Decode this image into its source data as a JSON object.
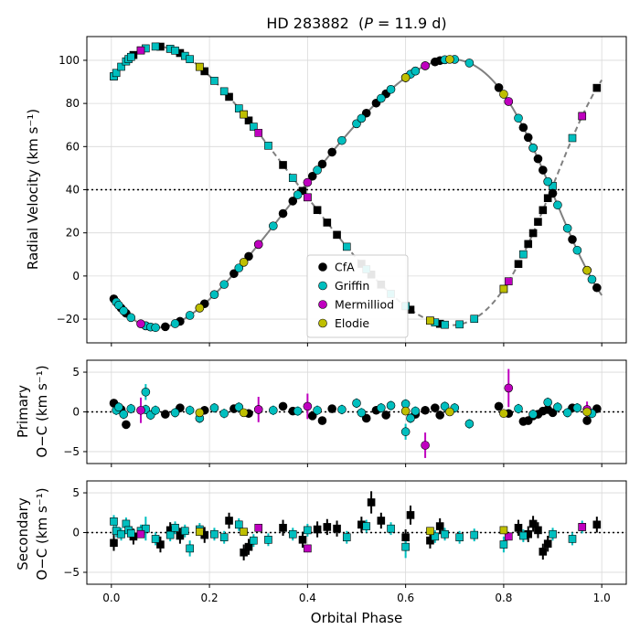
{
  "chart_data": [
    {
      "type": "scatter",
      "panel": "radial-velocity",
      "title": "HD 283882  (P = 11.9 d)",
      "title_parts": {
        "name": "HD 283882",
        "symbol": "P",
        "value": " = 11.9 d"
      },
      "ylabel": "Radial Velocity (km s⁻¹)",
      "xlim": [
        -0.05,
        1.05
      ],
      "ylim": [
        -31,
        111
      ],
      "yticks": [
        "−20",
        "0",
        "20",
        "40",
        "60",
        "80",
        "100"
      ],
      "ytick_values": [
        -20,
        0,
        20,
        40,
        60,
        80,
        100
      ],
      "grid": true,
      "systemic_velocity": 40,
      "model": {
        "gamma": 40,
        "K_primary": 62.2,
        "K_secondary": 64.6,
        "e": 0.16,
        "omega_deg": 100,
        "phase_periastron": 0.92
      },
      "legend_position": "lower-center",
      "legend": [
        {
          "label": "CfA",
          "color": "#000000"
        },
        {
          "label": "Griffin",
          "color": "#00bfbf"
        },
        {
          "label": "Mermilliod",
          "color": "#bf00bf"
        },
        {
          "label": "Elodie",
          "color": "#bfbf00"
        }
      ],
      "primary_marker": "circle",
      "secondary_marker": "square",
      "primary_phases": {
        "CfA": [
          0.005,
          0.02,
          0.03,
          0.11,
          0.14,
          0.19,
          0.25,
          0.28,
          0.35,
          0.37,
          0.41,
          0.43,
          0.45,
          0.52,
          0.54,
          0.56,
          0.62,
          0.64,
          0.66,
          0.67,
          0.79,
          0.81,
          0.84,
          0.85,
          0.86,
          0.87,
          0.88,
          0.89,
          0.9,
          0.94,
          0.97,
          0.99
        ],
        "Griffin": [
          0.01,
          0.015,
          0.025,
          0.04,
          0.07,
          0.07,
          0.08,
          0.09,
          0.13,
          0.16,
          0.18,
          0.21,
          0.23,
          0.26,
          0.3,
          0.33,
          0.38,
          0.42,
          0.47,
          0.5,
          0.51,
          0.55,
          0.57,
          0.6,
          0.6,
          0.61,
          0.62,
          0.68,
          0.7,
          0.73,
          0.83,
          0.86,
          0.89,
          0.91,
          0.93,
          0.95,
          0.98
        ],
        "Mermilliod": [
          0.06,
          0.3,
          0.4,
          0.64,
          0.81,
          0.97
        ],
        "Elodie": [
          0.18,
          0.27,
          0.6,
          0.69,
          0.8,
          0.97
        ]
      },
      "secondary_phases": {
        "CfA": [
          0.005,
          0.045,
          0.1,
          0.12,
          0.14,
          0.19,
          0.24,
          0.27,
          0.28,
          0.35,
          0.39,
          0.42,
          0.44,
          0.46,
          0.51,
          0.53,
          0.55,
          0.6,
          0.61,
          0.65,
          0.67,
          0.83,
          0.85,
          0.86,
          0.87,
          0.88,
          0.89,
          0.99
        ],
        "Griffin": [
          0.005,
          0.01,
          0.02,
          0.03,
          0.035,
          0.04,
          0.06,
          0.07,
          0.09,
          0.12,
          0.13,
          0.15,
          0.16,
          0.18,
          0.21,
          0.23,
          0.26,
          0.29,
          0.32,
          0.37,
          0.4,
          0.48,
          0.52,
          0.57,
          0.6,
          0.66,
          0.68,
          0.71,
          0.74,
          0.8,
          0.84,
          0.9,
          0.94,
          0.96
        ],
        "Mermilliod": [
          0.06,
          0.3,
          0.4,
          0.81,
          0.96
        ],
        "Elodie": [
          0.18,
          0.27,
          0.65,
          0.8
        ]
      }
    },
    {
      "type": "scatter",
      "panel": "primary-residuals",
      "ylabel_lines": [
        "Primary",
        "O−C (km s⁻¹)"
      ],
      "ylim": [
        -6.5,
        6.5
      ],
      "yticks": [
        "−5",
        "0",
        "5"
      ],
      "ytick_values": [
        -5,
        0,
        5
      ],
      "zero_line": true,
      "series": [
        {
          "name": "CfA",
          "color": "#000000",
          "x": [
            0.005,
            0.02,
            0.03,
            0.11,
            0.14,
            0.19,
            0.25,
            0.28,
            0.35,
            0.37,
            0.41,
            0.43,
            0.45,
            0.52,
            0.54,
            0.56,
            0.62,
            0.64,
            0.66,
            0.67,
            0.79,
            0.81,
            0.84,
            0.85,
            0.86,
            0.87,
            0.88,
            0.89,
            0.9,
            0.94,
            0.97,
            0.99
          ],
          "y": [
            1.1,
            0.3,
            -1.6,
            -0.3,
            0.5,
            0.2,
            0.4,
            -0.2,
            0.7,
            0.1,
            -0.5,
            -1.1,
            0.4,
            -0.8,
            0.2,
            -0.4,
            -0.3,
            0.2,
            0.5,
            -0.4,
            0.7,
            -0.2,
            -1.2,
            -1.1,
            -0.5,
            -0.3,
            0.1,
            0.3,
            -0.1,
            0.5,
            -1.1,
            0.4
          ],
          "err": [
            0.5,
            0.5,
            0.5,
            0.5,
            0.5,
            0.5,
            0.5,
            0.5,
            0.5,
            0.5,
            0.5,
            0.5,
            0.5,
            0.5,
            0.5,
            0.5,
            0.5,
            0.5,
            0.5,
            0.5,
            0.5,
            0.5,
            0.5,
            0.5,
            0.5,
            0.5,
            0.5,
            0.5,
            0.5,
            0.5,
            0.5,
            0.5
          ]
        },
        {
          "name": "Griffin",
          "color": "#00bfbf",
          "x": [
            0.01,
            0.015,
            0.025,
            0.04,
            0.07,
            0.07,
            0.08,
            0.09,
            0.13,
            0.16,
            0.18,
            0.21,
            0.23,
            0.26,
            0.3,
            0.33,
            0.38,
            0.42,
            0.47,
            0.5,
            0.51,
            0.55,
            0.57,
            0.6,
            0.6,
            0.61,
            0.62,
            0.68,
            0.7,
            0.73,
            0.83,
            0.86,
            0.89,
            0.91,
            0.93,
            0.95,
            0.98
          ],
          "y": [
            0.2,
            0.6,
            -0.3,
            0.4,
            0.3,
            2.5,
            -0.4,
            0.2,
            -0.1,
            0.2,
            -0.8,
            0.5,
            -0.2,
            0.6,
            0.3,
            0.2,
            0.1,
            0.2,
            0.3,
            1.1,
            -0.1,
            0.5,
            0.8,
            1.0,
            -2.5,
            -0.8,
            0.1,
            0.7,
            0.5,
            -1.5,
            0.4,
            -0.3,
            1.2,
            0.6,
            -0.1,
            0.5,
            -0.2
          ],
          "err": [
            0.6,
            0.6,
            0.6,
            0.6,
            0.6,
            1.0,
            0.6,
            0.6,
            0.6,
            0.6,
            0.6,
            0.6,
            0.6,
            0.6,
            0.6,
            0.6,
            0.6,
            0.6,
            0.6,
            0.6,
            0.6,
            0.6,
            0.6,
            0.6,
            1.0,
            0.6,
            0.6,
            0.6,
            0.6,
            0.6,
            0.6,
            0.6,
            0.6,
            0.6,
            0.6,
            0.6,
            0.6
          ]
        },
        {
          "name": "Mermilliod",
          "color": "#bf00bf",
          "x": [
            0.06,
            0.3,
            0.4,
            0.64,
            0.81,
            0.97
          ],
          "y": [
            0.2,
            0.3,
            0.7,
            -4.2,
            3.0,
            0.3
          ],
          "err": [
            1.6,
            1.6,
            1.6,
            1.6,
            2.4,
            1.0
          ]
        },
        {
          "name": "Elodie",
          "color": "#bfbf00",
          "x": [
            0.18,
            0.27,
            0.6,
            0.69,
            0.8,
            0.97
          ],
          "y": [
            -0.1,
            -0.1,
            0.1,
            0.0,
            -0.2,
            0.0
          ],
          "err": [
            0.3,
            0.3,
            0.3,
            0.3,
            0.3,
            0.3
          ]
        }
      ]
    },
    {
      "type": "scatter",
      "panel": "secondary-residuals",
      "ylabel_lines": [
        "Secondary",
        "O−C (km s⁻¹)"
      ],
      "xlabel": "Orbital Phase",
      "xlim": [
        -0.05,
        1.05
      ],
      "xticks": [
        "0.0",
        "0.2",
        "0.4",
        "0.6",
        "0.8",
        "1.0"
      ],
      "xtick_values": [
        0,
        0.2,
        0.4,
        0.6,
        0.8,
        1.0
      ],
      "ylim": [
        -6.5,
        6.5
      ],
      "yticks": [
        "−5",
        "0",
        "5"
      ],
      "ytick_values": [
        -5,
        0,
        5
      ],
      "zero_line": true,
      "series": [
        {
          "name": "CfA",
          "color": "#000000",
          "x": [
            0.005,
            0.045,
            0.1,
            0.12,
            0.14,
            0.19,
            0.24,
            0.27,
            0.28,
            0.35,
            0.39,
            0.42,
            0.44,
            0.46,
            0.51,
            0.53,
            0.55,
            0.6,
            0.61,
            0.65,
            0.67,
            0.83,
            0.85,
            0.86,
            0.87,
            0.88,
            0.89,
            0.99
          ],
          "y": [
            -1.3,
            -0.5,
            -1.5,
            0.3,
            -0.4,
            -0.3,
            1.5,
            -2.5,
            -1.8,
            0.6,
            -0.9,
            0.4,
            0.7,
            0.5,
            1.0,
            3.8,
            1.5,
            -0.6,
            2.2,
            -1.0,
            0.8,
            0.6,
            -0.2,
            1.1,
            0.3,
            -2.4,
            -1.4,
            1.0
          ],
          "err": [
            1.0,
            1.0,
            1.0,
            1.0,
            1.0,
            1.0,
            1.0,
            1.0,
            1.0,
            1.0,
            1.0,
            1.0,
            1.0,
            1.0,
            1.0,
            1.4,
            1.0,
            1.0,
            1.2,
            1.0,
            1.0,
            1.0,
            1.0,
            1.0,
            1.0,
            1.0,
            1.0,
            1.0
          ]
        },
        {
          "name": "Griffin",
          "color": "#00bfbf",
          "x": [
            0.005,
            0.01,
            0.02,
            0.03,
            0.035,
            0.04,
            0.06,
            0.07,
            0.09,
            0.12,
            0.13,
            0.15,
            0.16,
            0.18,
            0.21,
            0.23,
            0.26,
            0.29,
            0.32,
            0.37,
            0.4,
            0.48,
            0.52,
            0.57,
            0.6,
            0.66,
            0.68,
            0.71,
            0.74,
            0.8,
            0.84,
            0.9,
            0.94,
            0.96
          ],
          "y": [
            1.4,
            0.2,
            -0.2,
            1.1,
            0.3,
            -0.1,
            0.2,
            0.5,
            -0.8,
            -0.3,
            0.6,
            0.2,
            -2.0,
            0.4,
            -0.2,
            -0.6,
            1.0,
            -1.0,
            -0.9,
            -0.2,
            0.3,
            -0.6,
            0.8,
            0.5,
            -1.8,
            -0.5,
            -0.2,
            -0.6,
            -0.3,
            -1.5,
            -0.4,
            -0.2,
            -0.8,
            0.7
          ],
          "err": [
            0.8,
            0.8,
            0.8,
            0.8,
            0.8,
            0.8,
            0.8,
            1.5,
            0.8,
            0.8,
            0.8,
            0.8,
            1.0,
            0.8,
            0.8,
            0.8,
            0.8,
            0.8,
            0.8,
            0.8,
            0.8,
            0.8,
            0.8,
            0.8,
            1.4,
            0.8,
            0.8,
            0.8,
            0.8,
            1.0,
            0.8,
            0.8,
            0.8,
            0.8
          ]
        },
        {
          "name": "Mermilliod",
          "color": "#bf00bf",
          "x": [
            0.06,
            0.3,
            0.4,
            0.81,
            0.96
          ],
          "y": [
            -0.2,
            0.6,
            -2.0,
            -0.5,
            0.7
          ],
          "err": [
            0.4,
            0.4,
            0.4,
            0.4,
            0.4
          ]
        },
        {
          "name": "Elodie",
          "color": "#bfbf00",
          "x": [
            0.18,
            0.27,
            0.65,
            0.8
          ],
          "y": [
            0.1,
            0.1,
            0.2,
            0.3
          ],
          "err": [
            0.3,
            0.3,
            0.3,
            0.3
          ]
        }
      ]
    }
  ]
}
